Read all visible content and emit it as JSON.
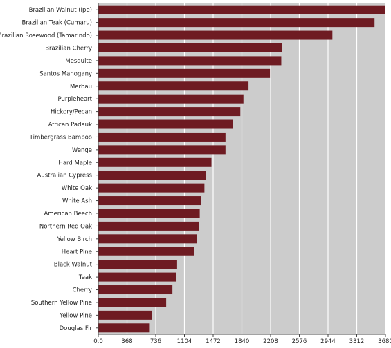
{
  "chart_data": {
    "type": "bar",
    "orientation": "horizontal",
    "categories": [
      "Brazilian Walnut (Ipe)",
      "Brazilian Teak (Cumaru)",
      "Brazilian Rosewood (Tamarindo)",
      "Brazilian Cherry",
      "Mesquite",
      "Santos Mahogany",
      "Merbau",
      "Purpleheart",
      "Hickory/Pecan",
      "African Padauk",
      "Timbergrass Bamboo",
      "Wenge",
      "Hard Maple",
      "Australian Cypress",
      "White Oak",
      "White Ash",
      "American Beech",
      "Northern Red Oak",
      "Yellow Birch",
      "Heart Pine",
      "Black Walnut",
      "Teak",
      "Cherry",
      "Southern Yellow Pine",
      "Yellow Pine",
      "Douglas Fir"
    ],
    "values": [
      3680,
      3540,
      3000,
      2350,
      2345,
      2200,
      1925,
      1860,
      1820,
      1725,
      1630,
      1630,
      1450,
      1375,
      1360,
      1320,
      1300,
      1290,
      1260,
      1225,
      1010,
      1000,
      950,
      870,
      690,
      660
    ],
    "ticks": [
      "0.0",
      "368",
      "736",
      "1104",
      "1472",
      "1840",
      "2208",
      "2576",
      "2944",
      "3312",
      "3680"
    ],
    "xlim": [
      0,
      3680
    ],
    "grid": true,
    "title": "",
    "xlabel": "",
    "ylabel": "",
    "colors": {
      "bar": "#6e1b22",
      "plot_background": "#cccccc",
      "gridline": "#ffffff",
      "axis": "#444444"
    }
  }
}
